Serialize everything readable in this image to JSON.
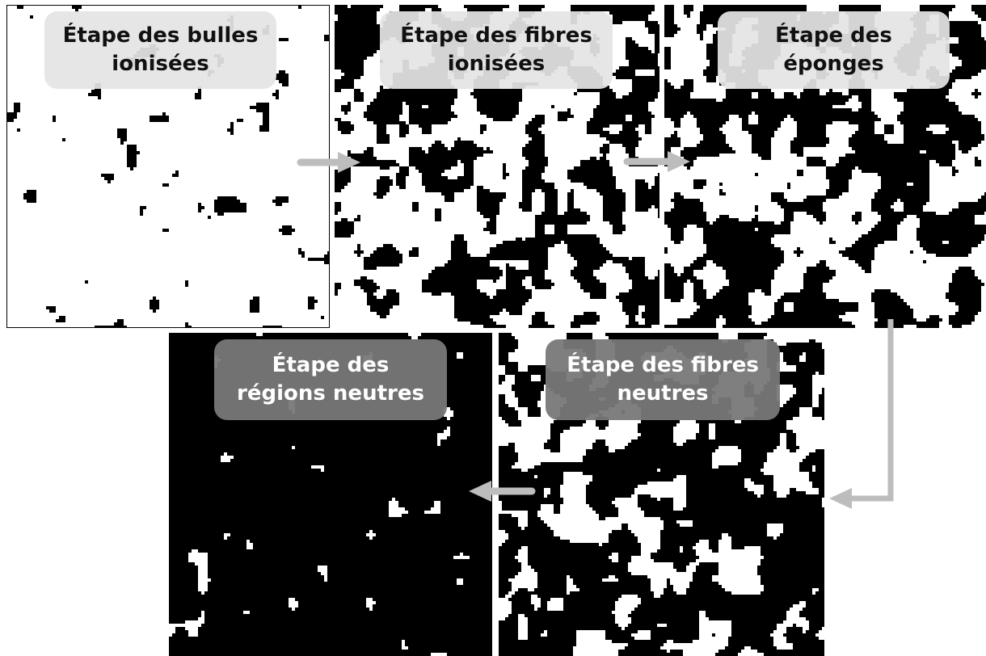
{
  "stages": [
    {
      "id": "bulles-ionisees",
      "lines": [
        "Étape des bulles",
        "ionisées"
      ],
      "fill": 0.04
    },
    {
      "id": "fibres-ionisees",
      "lines": [
        "Étape des fibres",
        "ionisées"
      ],
      "fill": 0.45
    },
    {
      "id": "eponges",
      "lines": [
        "Étape des",
        "éponges"
      ],
      "fill": 0.52
    },
    {
      "id": "fibres-neutres",
      "lines": [
        "Étape des fibres",
        "neutres"
      ],
      "fill": 0.66
    },
    {
      "id": "regions-neutres",
      "lines": [
        "Étape des",
        "régions neutres"
      ],
      "fill": 0.975
    }
  ],
  "colors": {
    "ionized": "#ffffff",
    "neutral": "#000000",
    "arrow": "#bdbdbd"
  }
}
